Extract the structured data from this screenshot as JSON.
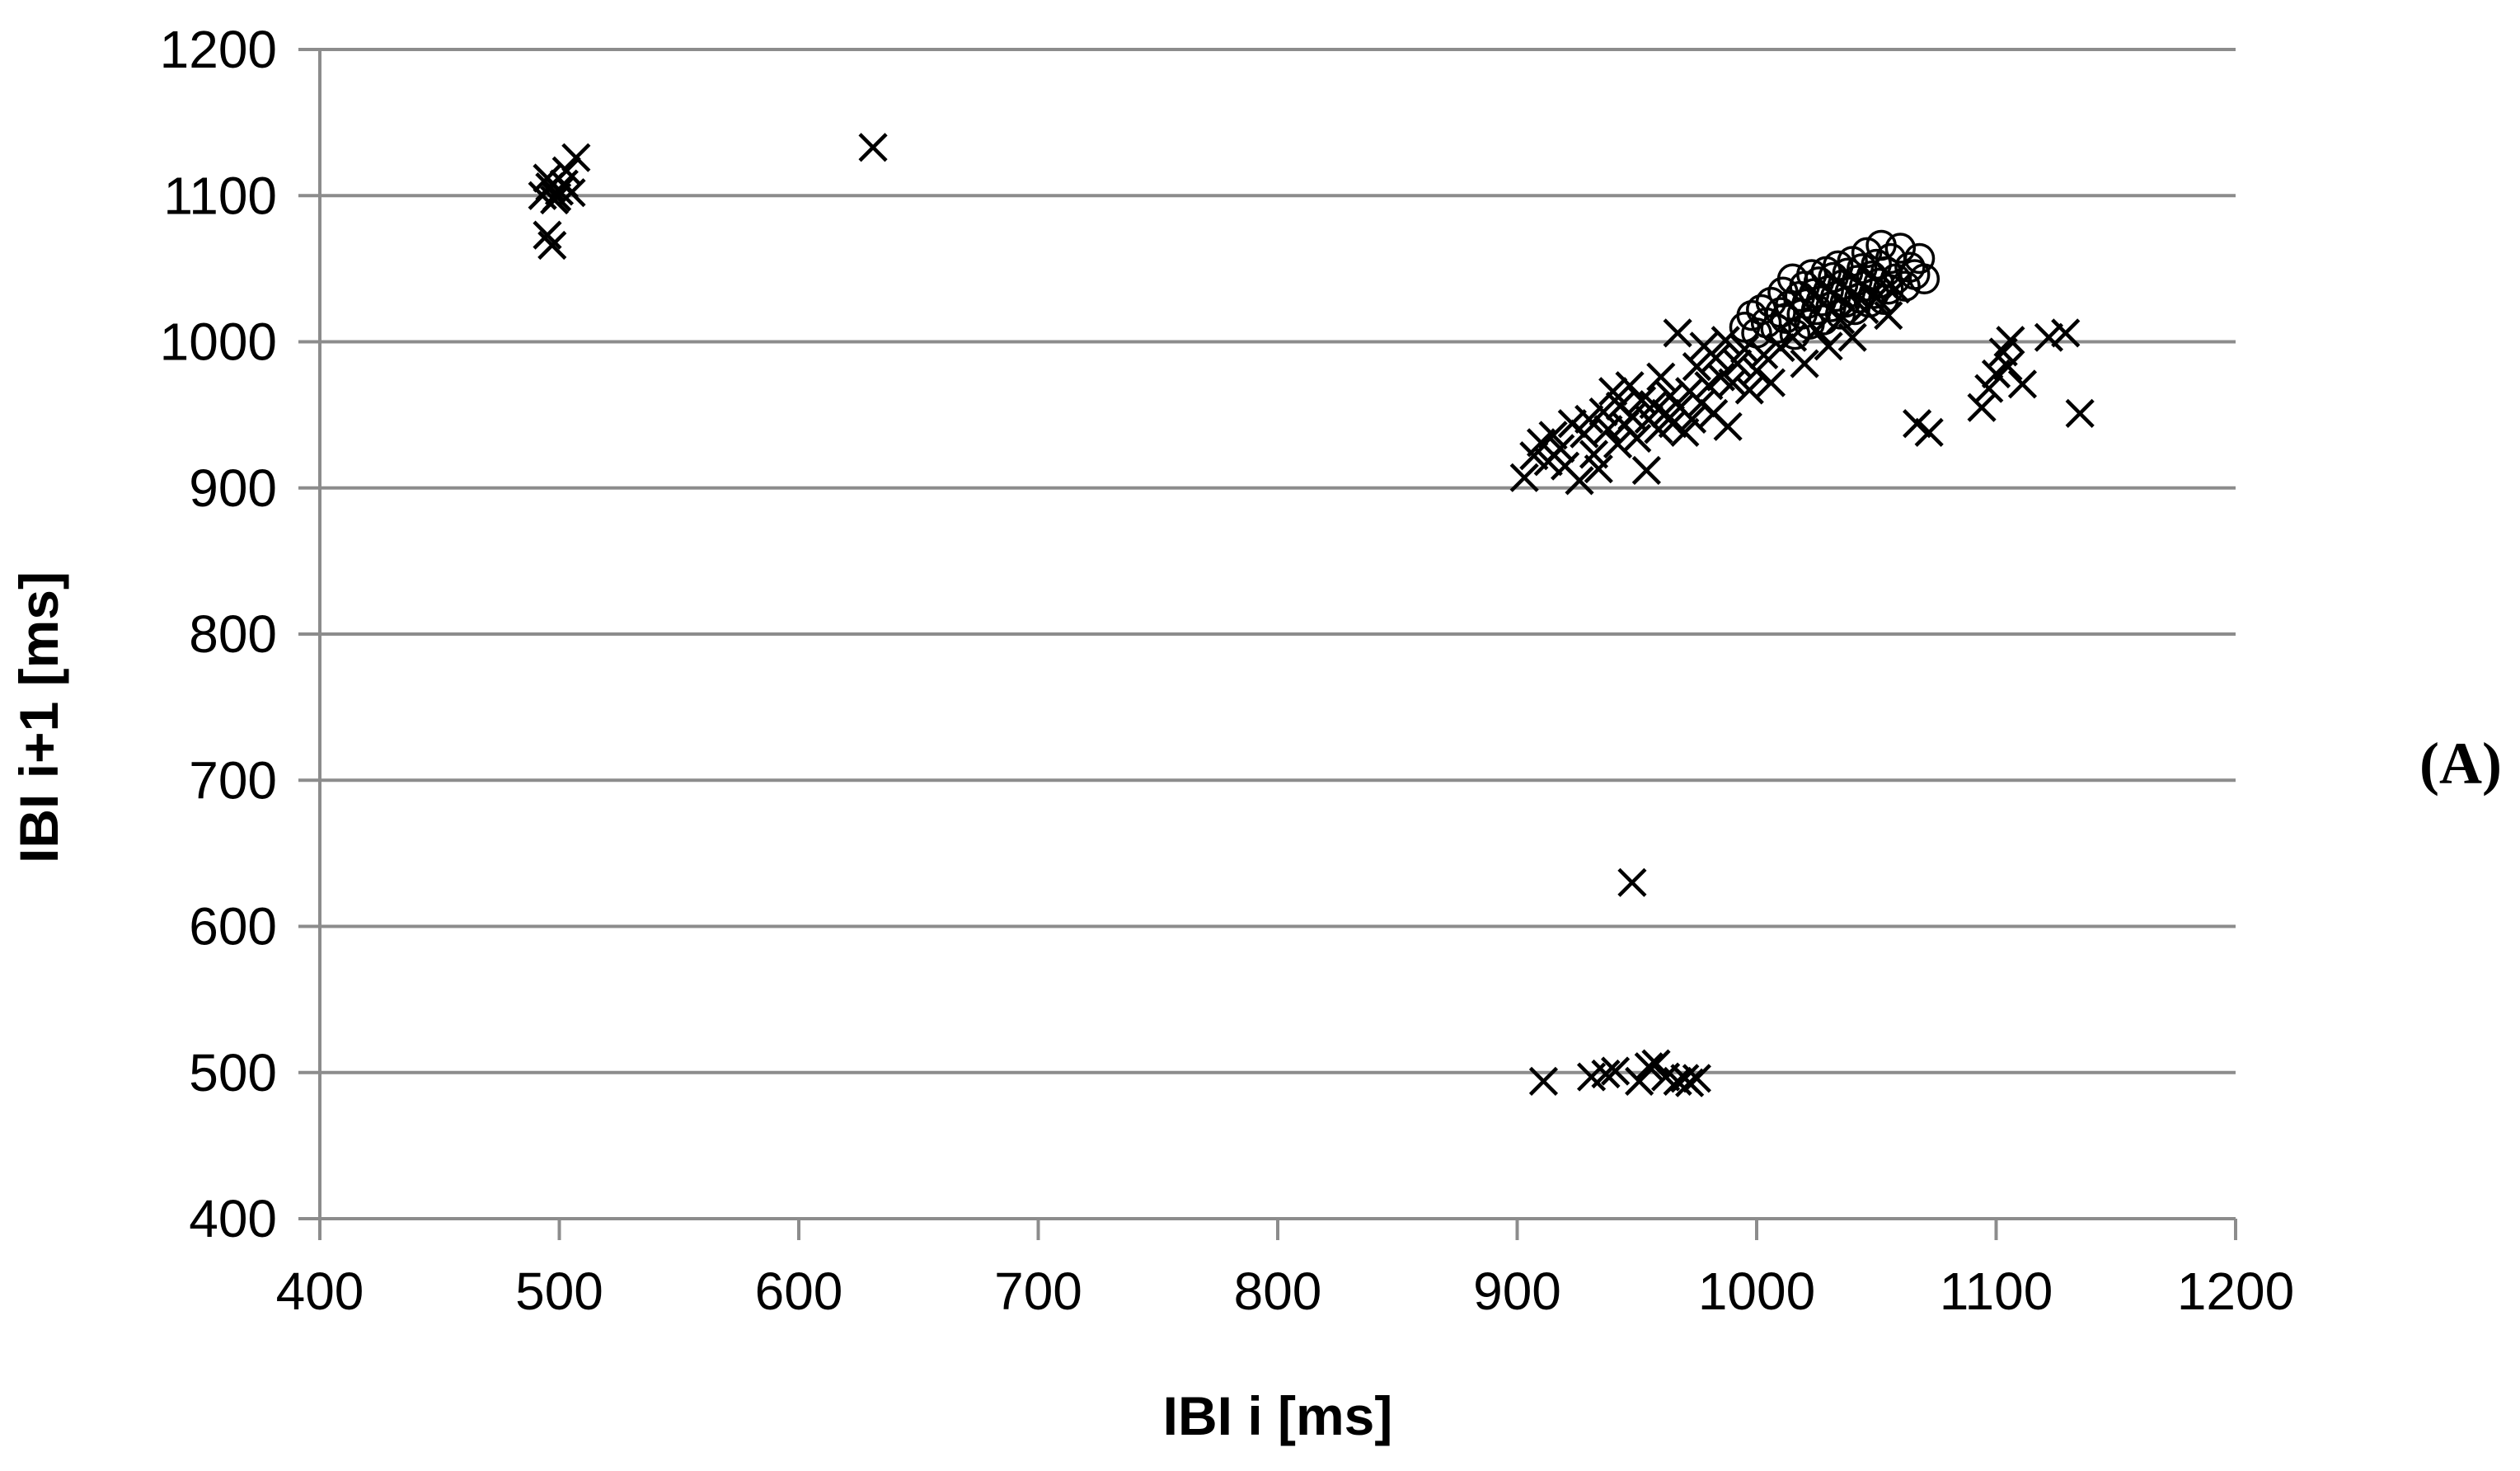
{
  "chart_data": {
    "type": "scatter",
    "title": "",
    "xlabel": "IBI i [ms]",
    "ylabel": "IBI i+1 [ms]",
    "xlim": [
      400,
      1200
    ],
    "ylim": [
      400,
      1200
    ],
    "xticks": [
      400,
      500,
      600,
      700,
      800,
      900,
      1000,
      1100,
      1200
    ],
    "yticks": [
      400,
      500,
      600,
      700,
      800,
      900,
      1000,
      1100,
      1200
    ],
    "grid": "horizontal",
    "legend": "none",
    "panel_label": "(A)",
    "series": [
      {
        "marker": "x",
        "points": [
          [
            493,
            1100
          ],
          [
            496,
            1106
          ],
          [
            498,
            1097
          ],
          [
            500,
            1103
          ],
          [
            495,
            1112
          ],
          [
            502,
            1108
          ],
          [
            505,
            1102
          ],
          [
            507,
            1126
          ],
          [
            503,
            1117
          ],
          [
            495,
            1073
          ],
          [
            497,
            1066
          ],
          [
            499,
            1099
          ],
          [
            631,
            1133
          ],
          [
            948,
            630
          ],
          [
            911,
            494
          ],
          [
            931,
            497
          ],
          [
            937,
            499
          ],
          [
            941,
            501
          ],
          [
            951,
            494
          ],
          [
            955,
            504
          ],
          [
            958,
            506
          ],
          [
            962,
            497
          ],
          [
            967,
            494
          ],
          [
            970,
            496
          ],
          [
            972,
            493
          ],
          [
            975,
            496
          ],
          [
            1067,
            944
          ],
          [
            1072,
            938
          ],
          [
            1094,
            955
          ],
          [
            1097,
            968
          ],
          [
            1100,
            978
          ],
          [
            1103,
            993
          ],
          [
            1105,
            983
          ],
          [
            1106,
            1001
          ],
          [
            1111,
            971
          ],
          [
            1122,
            1003
          ],
          [
            1129,
            1006
          ],
          [
            1135,
            951
          ],
          [
            903,
            907
          ],
          [
            907,
            922
          ],
          [
            910,
            931
          ],
          [
            913,
            918
          ],
          [
            915,
            936
          ],
          [
            918,
            927
          ],
          [
            920,
            915
          ],
          [
            923,
            944
          ],
          [
            926,
            905
          ],
          [
            928,
            937
          ],
          [
            930,
            947
          ],
          [
            932,
            923
          ],
          [
            934,
            913
          ],
          [
            936,
            952
          ],
          [
            938,
            940
          ],
          [
            940,
            966
          ],
          [
            942,
            930
          ],
          [
            943,
            956
          ],
          [
            945,
            943
          ],
          [
            947,
            970
          ],
          [
            948,
            949
          ],
          [
            950,
            934
          ],
          [
            952,
            960
          ],
          [
            954,
            912
          ],
          [
            955,
            947
          ],
          [
            957,
            957
          ],
          [
            959,
            940
          ],
          [
            960,
            976
          ],
          [
            962,
            951
          ],
          [
            964,
            963
          ],
          [
            965,
            944
          ],
          [
            967,
            1006
          ],
          [
            968,
            955
          ],
          [
            970,
            938
          ],
          [
            972,
            966
          ],
          [
            973,
            947
          ],
          [
            975,
            983
          ],
          [
            977,
            958
          ],
          [
            978,
            997
          ],
          [
            980,
            970
          ],
          [
            982,
            951
          ],
          [
            983,
            989
          ],
          [
            985,
            976
          ],
          [
            987,
            1001
          ],
          [
            988,
            942
          ],
          [
            990,
            972
          ],
          [
            992,
            985
          ],
          [
            995,
            995
          ],
          [
            997,
            967
          ],
          [
            1000,
            980
          ],
          [
            1003,
            991
          ],
          [
            1006,
            972
          ],
          [
            1010,
            996
          ],
          [
            1015,
            1003
          ],
          [
            1020,
            985
          ],
          [
            1025,
            1008
          ],
          [
            1030,
            997
          ],
          [
            1035,
            1015
          ],
          [
            1040,
            1003
          ],
          [
            1045,
            1022
          ],
          [
            1050,
            1030
          ],
          [
            1055,
            1018
          ],
          [
            1058,
            1036
          ]
        ]
      },
      {
        "marker": "o",
        "points": [
          [
            995,
            1010
          ],
          [
            998,
            1018
          ],
          [
            1000,
            1006
          ],
          [
            1002,
            1022
          ],
          [
            1004,
            1013
          ],
          [
            1006,
            1027
          ],
          [
            1008,
            1009
          ],
          [
            1010,
            1020
          ],
          [
            1011,
            1034
          ],
          [
            1012,
            1016
          ],
          [
            1014,
            1025
          ],
          [
            1015,
            1043
          ],
          [
            1016,
            1005
          ],
          [
            1018,
            1031
          ],
          [
            1019,
            1019
          ],
          [
            1020,
            1038
          ],
          [
            1021,
            1026
          ],
          [
            1022,
            1012
          ],
          [
            1023,
            1046
          ],
          [
            1024,
            1033
          ],
          [
            1025,
            1022
          ],
          [
            1026,
            1041
          ],
          [
            1027,
            1028
          ],
          [
            1028,
            1015
          ],
          [
            1029,
            1048
          ],
          [
            1030,
            1035
          ],
          [
            1031,
            1024
          ],
          [
            1032,
            1044
          ],
          [
            1033,
            1031
          ],
          [
            1034,
            1052
          ],
          [
            1035,
            1019
          ],
          [
            1036,
            1039
          ],
          [
            1037,
            1027
          ],
          [
            1038,
            1047
          ],
          [
            1039,
            1034
          ],
          [
            1040,
            1055
          ],
          [
            1041,
            1022
          ],
          [
            1042,
            1042
          ],
          [
            1043,
            1030
          ],
          [
            1044,
            1050
          ],
          [
            1045,
            1038
          ],
          [
            1046,
            1061
          ],
          [
            1047,
            1027
          ],
          [
            1048,
            1045
          ],
          [
            1049,
            1033
          ],
          [
            1050,
            1053
          ],
          [
            1051,
            1040
          ],
          [
            1052,
            1066
          ],
          [
            1053,
            1029
          ],
          [
            1054,
            1048
          ],
          [
            1055,
            1036
          ],
          [
            1056,
            1057
          ],
          [
            1058,
            1043
          ],
          [
            1060,
            1064
          ],
          [
            1062,
            1038
          ],
          [
            1064,
            1051
          ],
          [
            1066,
            1046
          ],
          [
            1068,
            1057
          ],
          [
            1070,
            1043
          ]
        ]
      }
    ]
  }
}
